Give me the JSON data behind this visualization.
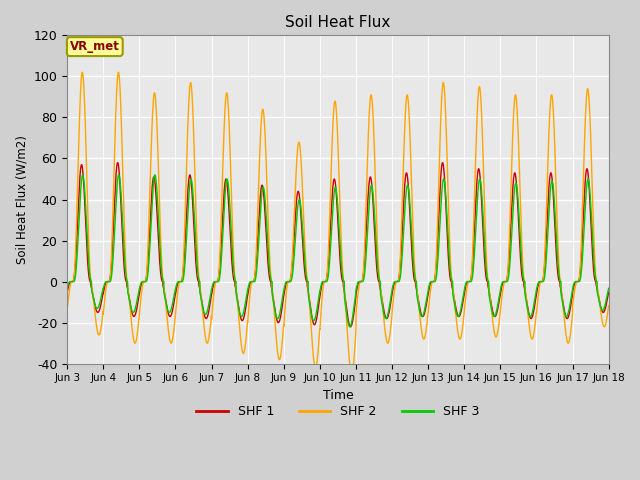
{
  "title": "Soil Heat Flux",
  "ylabel": "Soil Heat Flux (W/m2)",
  "xlabel": "Time",
  "ylim": [
    -40,
    120
  ],
  "yticks": [
    -40,
    -20,
    0,
    20,
    40,
    60,
    80,
    100,
    120
  ],
  "fig_bg_color": "#d0d0d0",
  "plot_bg_color": "#e8e8e8",
  "shf1_color": "#cc0000",
  "shf2_color": "#ffa500",
  "shf3_color": "#00cc00",
  "legend_label1": "SHF 1",
  "legend_label2": "SHF 2",
  "legend_label3": "SHF 3",
  "annotation_text": "VR_met",
  "annotation_bg": "#ffff99",
  "annotation_border": "#999900",
  "annotation_text_color": "#880000",
  "xtick_labels": [
    "Jun 3",
    "Jun 4",
    "Jun 5",
    "Jun 6",
    "Jun 7",
    "Jun 8",
    "Jun 9",
    "Jun 10",
    "Jun 11",
    "Jun 12",
    "Jun 13",
    "Jun 14",
    "Jun 15",
    "Jun 16",
    "Jun 17",
    "Jun 18"
  ],
  "line_width": 1.0,
  "shf2_peaks": [
    102,
    102,
    92,
    97,
    92,
    84,
    68,
    88,
    91,
    91,
    97,
    95,
    91,
    91,
    94,
    94
  ],
  "shf1_peaks": [
    57,
    58,
    51,
    52,
    50,
    47,
    44,
    50,
    51,
    53,
    58,
    55,
    53,
    53,
    55,
    56
  ],
  "shf3_peaks": [
    52,
    52,
    52,
    50,
    50,
    46,
    40,
    46,
    47,
    47,
    50,
    50,
    48,
    49,
    50,
    50
  ],
  "shf2_troughs": [
    -26,
    -30,
    -30,
    -30,
    -35,
    -38,
    -42,
    -45,
    -30,
    -28,
    -28,
    -27,
    -28,
    -30,
    -22,
    -22
  ],
  "shf1_troughs": [
    -15,
    -17,
    -17,
    -18,
    -19,
    -20,
    -21,
    -22,
    -18,
    -17,
    -17,
    -17,
    -18,
    -18,
    -15,
    -15
  ],
  "shf3_troughs": [
    -13,
    -15,
    -15,
    -16,
    -17,
    -18,
    -19,
    -22,
    -18,
    -17,
    -17,
    -17,
    -17,
    -17,
    -14,
    -14
  ]
}
